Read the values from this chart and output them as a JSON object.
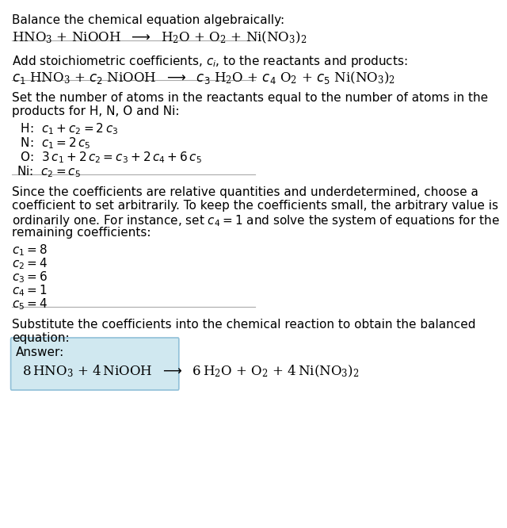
{
  "title_line1": "Balance the chemical equation algebraically:",
  "title_line2_parts": [
    {
      "text": "HNO",
      "style": "normal"
    },
    {
      "text": "3",
      "style": "sub"
    },
    {
      "text": " + NiOOH  →  H",
      "style": "normal"
    },
    {
      "text": "2",
      "style": "sub"
    },
    {
      "text": "O + O",
      "style": "normal"
    },
    {
      "text": "2",
      "style": "sub"
    },
    {
      "text": " + Ni(NO",
      "style": "normal"
    },
    {
      "text": "3",
      "style": "sub"
    },
    {
      "text": ")",
      "style": "normal"
    },
    {
      "text": "2",
      "style": "sub"
    }
  ],
  "section2_line1": "Add stoichiometric coefficients, $c_i$, to the reactants and products:",
  "section3_line1": "Set the number of atoms in the reactants equal to the number of atoms in the",
  "section3_line2": "products for H, N, O and Ni:",
  "section5_line1": "Since the coefficients are relative quantities and underdetermined, choose a",
  "section5_line2": "coefficient to set arbitrarily. To keep the coefficients small, the arbitrary value is",
  "section5_line3": "ordinarily one. For instance, set $c_4 = 1$ and solve the system of equations for the",
  "section5_line4": "remaining coefficients:",
  "section7_line1": "Substitute the coefficients into the chemical reaction to obtain the balanced",
  "section7_line2": "equation:",
  "answer_label": "Answer:",
  "bg_color": "#ffffff",
  "box_color": "#d0e8f0",
  "box_edge_color": "#90c0d8",
  "text_color": "#000000",
  "font_size": 11,
  "mono_font": "DejaVu Sans Mono"
}
